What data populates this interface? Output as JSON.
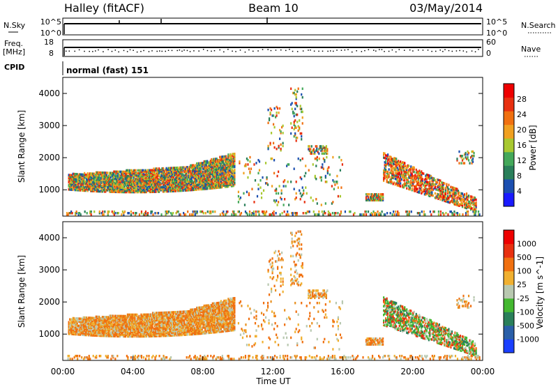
{
  "header": {
    "title": "Halley (fitACF)",
    "beam": "Beam 10",
    "date": "03/May/2014"
  },
  "status_panels": {
    "nsky_label": "N.Sky",
    "nsky_ticks": [
      "10^5",
      "10^0"
    ],
    "nsearch_label": "N.Search",
    "nsearch_ticks": [
      "10^5",
      "10^0"
    ],
    "freq_label": "Freq.",
    "freq_unit": "[MHz]",
    "freq_ticks": [
      "18",
      "8"
    ],
    "nave_label": "Nave",
    "nave_ticks": [
      "60",
      "0"
    ],
    "cpid_label": "CPID",
    "cpid_value": "normal (fast) 151"
  },
  "chart_data": [
    {
      "type": "heatmap",
      "panel": "power",
      "ylabel": "Slant Range [km]",
      "xlabel": "",
      "yticks": [
        1000,
        2000,
        3000,
        4000
      ],
      "ylim": [
        180,
        4500
      ],
      "xlim_hours": [
        0,
        24
      ],
      "colorbar": {
        "label": "Power [dB]",
        "ticks": [
          "28",
          "24",
          "20",
          "16",
          "12",
          "8",
          "4"
        ],
        "colors": [
          "#1a1aff",
          "#1c4fb0",
          "#2a7f5a",
          "#44a85a",
          "#a8c830",
          "#f0a020",
          "#f07010",
          "#e83010",
          "#ee0000"
        ]
      },
      "regions": [
        {
          "t0": 0.3,
          "t1": 9.8,
          "r0": 900,
          "r1": 1550,
          "color": "#44a85a"
        },
        {
          "t0": 0.6,
          "t1": 7.2,
          "r0": 1100,
          "r1": 1450,
          "color": "#a8c830"
        },
        {
          "t0": 2.5,
          "t1": 7.5,
          "r0": 1250,
          "r1": 1500,
          "color": "#f07010"
        },
        {
          "t0": 18.5,
          "t1": 23.5,
          "r0": 300,
          "r1": 1800,
          "color": "#e83010"
        }
      ]
    },
    {
      "type": "heatmap",
      "panel": "velocity",
      "ylabel": "Slant Range [km]",
      "xlabel": "Time UT",
      "xticks": [
        "00:00",
        "04:00",
        "08:00",
        "12:00",
        "16:00",
        "20:00",
        "00:00"
      ],
      "yticks": [
        1000,
        2000,
        3000,
        4000
      ],
      "ylim": [
        180,
        4500
      ],
      "xlim_hours": [
        0,
        24
      ],
      "colorbar": {
        "label": "Velocity [m s^-1]",
        "ticks": [
          "1000",
          "500",
          "100",
          "25",
          "-25",
          "-100",
          "-500",
          "-1000"
        ],
        "colors": [
          "#1a3fff",
          "#2a5fa8",
          "#2a7f5a",
          "#44b830",
          "#b8c8b0",
          "#f0b030",
          "#f07010",
          "#e83010",
          "#ee0000"
        ]
      }
    }
  ]
}
